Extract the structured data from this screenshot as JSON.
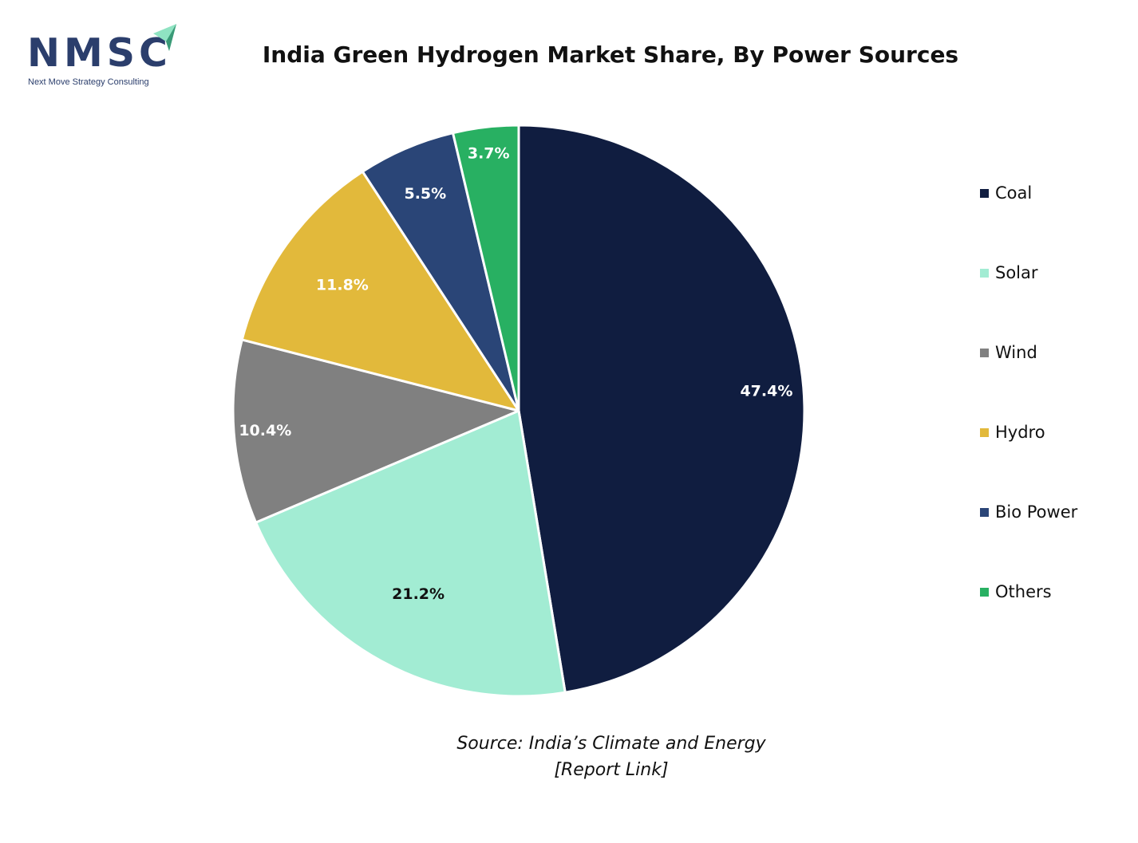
{
  "logo": {
    "text": "NMSC",
    "tagline": "Next Move Strategy Consulting"
  },
  "source": {
    "line1": "Source:  India’s Climate and Energy",
    "line2": "[Report Link]"
  },
  "colors": {
    "coal": "#101d40",
    "solar": "#a2ecd3",
    "wind": "#808080",
    "hydro": "#e2b93b",
    "bio_power": "#2a4577",
    "others": "#28b062",
    "brand_navy": "#2b3e6c",
    "brand_mint": "#8fe3c2"
  },
  "chart_data": {
    "type": "pie",
    "title": "India Green Hydrogen Market Share, By Power Sources",
    "unit": "%",
    "legend_position": "right",
    "slices": [
      {
        "name": "Coal",
        "value": 47.4,
        "label": "47.4%",
        "color": "#101d40",
        "label_color": "#ffffff"
      },
      {
        "name": "Solar",
        "value": 21.2,
        "label": "21.2%",
        "color": "#a2ecd3",
        "label_color": "#111111"
      },
      {
        "name": "Wind",
        "value": 10.4,
        "label": "10.4%",
        "color": "#808080",
        "label_color": "#ffffff"
      },
      {
        "name": "Hydro",
        "value": 11.8,
        "label": "11.8%",
        "color": "#e2b93b",
        "label_color": "#ffffff"
      },
      {
        "name": "Bio Power",
        "value": 5.5,
        "label": "5.5%",
        "color": "#2a4577",
        "label_color": "#ffffff"
      },
      {
        "name": "Others",
        "value": 3.7,
        "label": "3.7%",
        "color": "#28b062",
        "label_color": "#ffffff"
      }
    ]
  }
}
